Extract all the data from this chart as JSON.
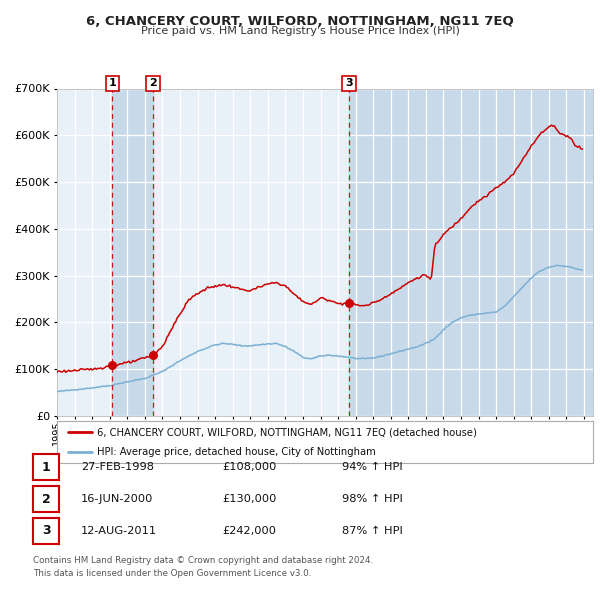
{
  "title": "6, CHANCERY COURT, WILFORD, NOTTINGHAM, NG11 7EQ",
  "subtitle": "Price paid vs. HM Land Registry's House Price Index (HPI)",
  "legend_line1": "6, CHANCERY COURT, WILFORD, NOTTINGHAM, NG11 7EQ (detached house)",
  "legend_line2": "HPI: Average price, detached house, City of Nottingham",
  "footer1": "Contains HM Land Registry data © Crown copyright and database right 2024.",
  "footer2": "This data is licensed under the Open Government Licence v3.0.",
  "transactions": [
    {
      "num": 1,
      "date": "27-FEB-1998",
      "price": 108000,
      "pct": "94%",
      "dir": "↑"
    },
    {
      "num": 2,
      "date": "16-JUN-2000",
      "price": 130000,
      "pct": "98%",
      "dir": "↑"
    },
    {
      "num": 3,
      "date": "12-AUG-2011",
      "price": 242000,
      "pct": "87%",
      "dir": "↑"
    }
  ],
  "sale_dates_decimal": [
    1998.15,
    2000.46,
    2011.62
  ],
  "sale_prices": [
    108000,
    130000,
    242000
  ],
  "hpi_color": "#7ab0d4",
  "price_color": "#cc0000",
  "dashed_line_color": "#cc0000",
  "plot_bg_color": "#e8f0f8",
  "shade_color": "#c8daea",
  "grid_color": "#ffffff",
  "ylim": [
    0,
    700000
  ],
  "yticks": [
    0,
    100000,
    200000,
    300000,
    400000,
    500000,
    600000,
    700000
  ],
  "xlim_start": 1995.0,
  "xlim_end": 2025.5,
  "shade_regions": [
    {
      "start": 1998.15,
      "end": 2000.46
    },
    {
      "start": 2011.62,
      "end": 2025.5
    }
  ],
  "hpi_anchors": [
    [
      1995.0,
      52000
    ],
    [
      1996.0,
      56000
    ],
    [
      1997.0,
      60000
    ],
    [
      1998.0,
      65000
    ],
    [
      1999.0,
      73000
    ],
    [
      2000.0,
      80000
    ],
    [
      2001.0,
      95000
    ],
    [
      2002.0,
      118000
    ],
    [
      2003.0,
      138000
    ],
    [
      2004.0,
      152000
    ],
    [
      2004.5,
      155000
    ],
    [
      2005.0,
      153000
    ],
    [
      2005.5,
      150000
    ],
    [
      2006.0,
      150000
    ],
    [
      2006.5,
      152000
    ],
    [
      2007.0,
      154000
    ],
    [
      2007.5,
      155000
    ],
    [
      2008.0,
      148000
    ],
    [
      2008.5,
      138000
    ],
    [
      2009.0,
      125000
    ],
    [
      2009.5,
      122000
    ],
    [
      2010.0,
      128000
    ],
    [
      2010.5,
      130000
    ],
    [
      2011.0,
      128000
    ],
    [
      2011.5,
      126000
    ],
    [
      2012.0,
      123000
    ],
    [
      2012.5,
      122000
    ],
    [
      2013.0,
      124000
    ],
    [
      2013.5,
      128000
    ],
    [
      2014.0,
      133000
    ],
    [
      2014.5,
      138000
    ],
    [
      2015.0,
      143000
    ],
    [
      2015.5,
      148000
    ],
    [
      2016.0,
      155000
    ],
    [
      2016.5,
      165000
    ],
    [
      2017.0,
      185000
    ],
    [
      2017.5,
      200000
    ],
    [
      2018.0,
      210000
    ],
    [
      2018.5,
      215000
    ],
    [
      2019.0,
      218000
    ],
    [
      2019.5,
      220000
    ],
    [
      2020.0,
      222000
    ],
    [
      2020.5,
      235000
    ],
    [
      2021.0,
      255000
    ],
    [
      2021.5,
      275000
    ],
    [
      2022.0,
      295000
    ],
    [
      2022.5,
      310000
    ],
    [
      2023.0,
      318000
    ],
    [
      2023.5,
      322000
    ],
    [
      2024.0,
      320000
    ],
    [
      2024.5,
      315000
    ],
    [
      2024.9,
      312000
    ]
  ],
  "price_anchors": [
    [
      1995.0,
      95000
    ],
    [
      1996.0,
      97000
    ],
    [
      1997.0,
      100000
    ],
    [
      1997.5,
      103000
    ],
    [
      1998.15,
      108000
    ],
    [
      1998.8,
      112000
    ],
    [
      1999.5,
      118000
    ],
    [
      2000.46,
      130000
    ],
    [
      2001.0,
      148000
    ],
    [
      2001.5,
      185000
    ],
    [
      2002.0,
      218000
    ],
    [
      2002.5,
      248000
    ],
    [
      2003.0,
      262000
    ],
    [
      2003.5,
      272000
    ],
    [
      2004.0,
      278000
    ],
    [
      2004.5,
      280000
    ],
    [
      2005.0,
      276000
    ],
    [
      2005.5,
      270000
    ],
    [
      2006.0,
      268000
    ],
    [
      2006.5,
      275000
    ],
    [
      2007.0,
      282000
    ],
    [
      2007.5,
      285000
    ],
    [
      2008.0,
      278000
    ],
    [
      2008.5,
      260000
    ],
    [
      2009.0,
      245000
    ],
    [
      2009.5,
      238000
    ],
    [
      2010.0,
      252000
    ],
    [
      2010.5,
      248000
    ],
    [
      2011.0,
      240000
    ],
    [
      2011.62,
      242000
    ],
    [
      2012.0,
      238000
    ],
    [
      2012.5,
      235000
    ],
    [
      2013.0,
      242000
    ],
    [
      2013.5,
      250000
    ],
    [
      2014.0,
      262000
    ],
    [
      2014.5,
      272000
    ],
    [
      2015.0,
      285000
    ],
    [
      2015.5,
      295000
    ],
    [
      2016.0,
      302000
    ],
    [
      2016.3,
      290000
    ],
    [
      2016.5,
      362000
    ],
    [
      2017.0,
      388000
    ],
    [
      2017.5,
      405000
    ],
    [
      2018.0,
      422000
    ],
    [
      2018.5,
      445000
    ],
    [
      2019.0,
      460000
    ],
    [
      2019.5,
      472000
    ],
    [
      2020.0,
      488000
    ],
    [
      2020.5,
      500000
    ],
    [
      2021.0,
      518000
    ],
    [
      2021.5,
      548000
    ],
    [
      2022.0,
      578000
    ],
    [
      2022.5,
      602000
    ],
    [
      2023.0,
      618000
    ],
    [
      2023.3,
      622000
    ],
    [
      2023.5,
      608000
    ],
    [
      2024.0,
      598000
    ],
    [
      2024.3,
      593000
    ],
    [
      2024.5,
      578000
    ],
    [
      2024.9,
      572000
    ]
  ]
}
